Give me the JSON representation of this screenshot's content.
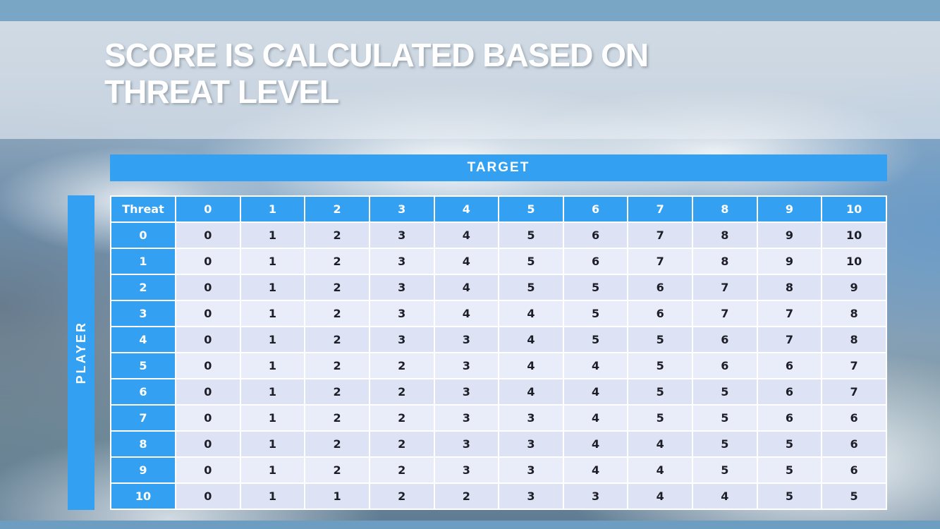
{
  "slide": {
    "title_line1": "SCORE IS CALCULATED BASED ON",
    "title_line2": "THREAT LEVEL"
  },
  "table": {
    "target_label": "TARGET",
    "player_label": "PLAYER",
    "corner_label": "Threat",
    "column_headers": [
      "0",
      "1",
      "2",
      "3",
      "4",
      "5",
      "6",
      "7",
      "8",
      "9",
      "10"
    ],
    "rows": [
      {
        "threat": "0",
        "values": [
          "0",
          "1",
          "2",
          "3",
          "4",
          "5",
          "6",
          "7",
          "8",
          "9",
          "10"
        ]
      },
      {
        "threat": "1",
        "values": [
          "0",
          "1",
          "2",
          "3",
          "4",
          "5",
          "6",
          "7",
          "8",
          "9",
          "10"
        ]
      },
      {
        "threat": "2",
        "values": [
          "0",
          "1",
          "2",
          "3",
          "4",
          "5",
          "5",
          "6",
          "7",
          "8",
          "9"
        ]
      },
      {
        "threat": "3",
        "values": [
          "0",
          "1",
          "2",
          "3",
          "4",
          "4",
          "5",
          "6",
          "7",
          "7",
          "8"
        ]
      },
      {
        "threat": "4",
        "values": [
          "0",
          "1",
          "2",
          "3",
          "3",
          "4",
          "5",
          "5",
          "6",
          "7",
          "8"
        ]
      },
      {
        "threat": "5",
        "values": [
          "0",
          "1",
          "2",
          "2",
          "3",
          "4",
          "4",
          "5",
          "6",
          "6",
          "7"
        ]
      },
      {
        "threat": "6",
        "values": [
          "0",
          "1",
          "2",
          "2",
          "3",
          "4",
          "4",
          "5",
          "5",
          "6",
          "7"
        ]
      },
      {
        "threat": "7",
        "values": [
          "0",
          "1",
          "2",
          "2",
          "3",
          "3",
          "4",
          "5",
          "5",
          "6",
          "6"
        ]
      },
      {
        "threat": "8",
        "values": [
          "0",
          "1",
          "2",
          "2",
          "3",
          "3",
          "4",
          "4",
          "5",
          "5",
          "6"
        ]
      },
      {
        "threat": "9",
        "values": [
          "0",
          "1",
          "2",
          "2",
          "3",
          "3",
          "4",
          "4",
          "5",
          "5",
          "6"
        ]
      },
      {
        "threat": "10",
        "values": [
          "0",
          "1",
          "1",
          "2",
          "2",
          "3",
          "3",
          "4",
          "4",
          "5",
          "5"
        ]
      }
    ]
  },
  "colors": {
    "accent_blue": "#33a0f2",
    "top_bar": "#7aa6c6",
    "bottom_bar": "#6d9ec2",
    "row_band_dark": "#dde3f5",
    "row_band_light": "#e9edf9",
    "title_text": "#ffffff",
    "cell_text": "#1e1e28"
  }
}
